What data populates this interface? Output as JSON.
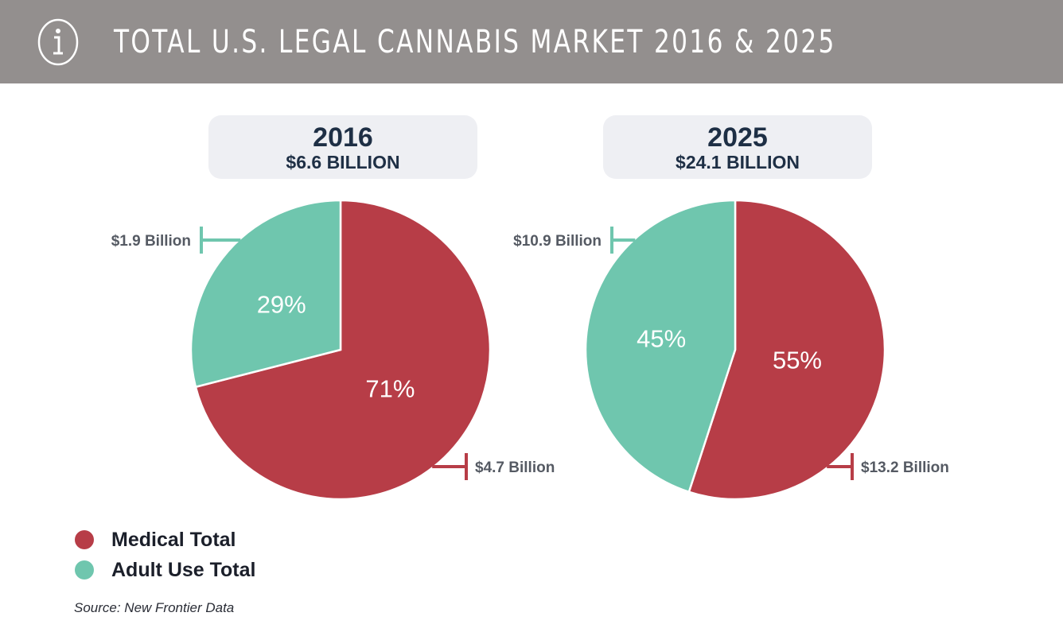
{
  "header": {
    "title": "TOTAL U.S. LEGAL CANNABIS MARKET 2016 & 2025",
    "icon": "info-icon",
    "background": "#938f8e"
  },
  "colors": {
    "medical": "#b73d47",
    "adult_use": "#6fc6ae"
  },
  "chart_data": [
    {
      "type": "pie",
      "title": "2016",
      "subtitle": "$6.6 BILLION",
      "slices": [
        {
          "name": "Adult Use Total",
          "value": 29,
          "pct_label": "29%",
          "amount_label": "$1.9 Billion"
        },
        {
          "name": "Medical Total",
          "value": 71,
          "pct_label": "71%",
          "amount_label": "$4.7 Billion"
        }
      ]
    },
    {
      "type": "pie",
      "title": "2025",
      "subtitle": "$24.1 BILLION",
      "slices": [
        {
          "name": "Adult Use Total",
          "value": 45,
          "pct_label": "45%",
          "amount_label": "$10.9 Billion"
        },
        {
          "name": "Medical Total",
          "value": 55,
          "pct_label": "55%",
          "amount_label": "$13.2 Billion"
        }
      ]
    }
  ],
  "legend": [
    {
      "label": "Medical Total",
      "color": "#b73d47"
    },
    {
      "label": "Adult Use Total",
      "color": "#6fc6ae"
    }
  ],
  "source": "Source: New Frontier Data"
}
